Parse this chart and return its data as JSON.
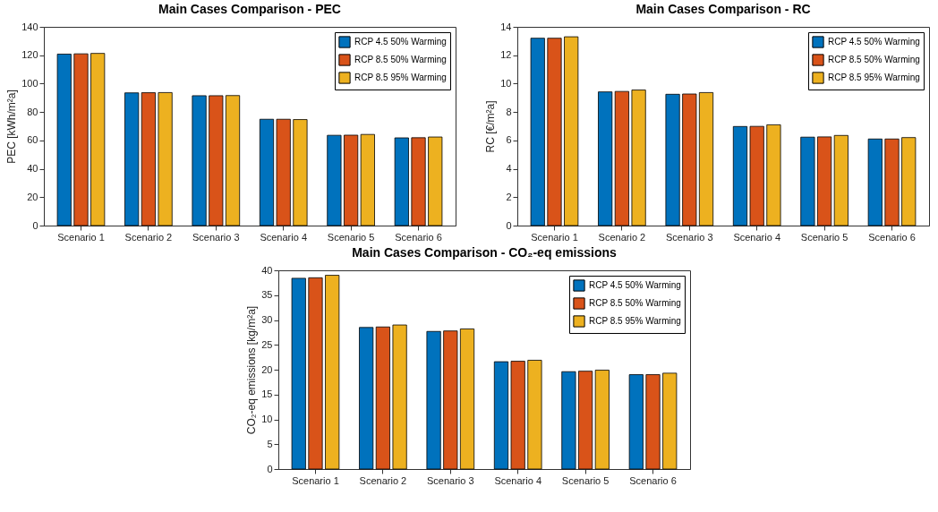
{
  "chart_data": [
    {
      "type": "bar",
      "title": "Main Cases Comparison - PEC",
      "ylabel": "PEC [kWh/m²a]",
      "categories": [
        "Scenario 1",
        "Scenario 2",
        "Scenario 3",
        "Scenario 4",
        "Scenario 5",
        "Scenario 6"
      ],
      "ylim": [
        0,
        140
      ],
      "yticks": [
        0,
        20,
        40,
        60,
        80,
        100,
        120,
        140
      ],
      "legend": "top right",
      "series": [
        {
          "name": "RCP 4.5 50% Warming",
          "color": "#0072bd",
          "values": [
            120.8,
            93.5,
            91.5,
            74.9,
            63.6,
            61.8
          ]
        },
        {
          "name": "RCP 8.5 50% Warming",
          "color": "#d95319",
          "values": [
            121,
            93.6,
            91.5,
            74.9,
            63.7,
            61.9
          ]
        },
        {
          "name": "RCP 8.5 95% Warming",
          "color": "#edb120",
          "values": [
            121.3,
            93.7,
            91.6,
            74.7,
            64.2,
            62.4
          ]
        }
      ]
    },
    {
      "type": "bar",
      "title": "Main Cases Comparison - RC",
      "ylabel": "RC [€/m²a]",
      "categories": [
        "Scenario 1",
        "Scenario 2",
        "Scenario 3",
        "Scenario 4",
        "Scenario 5",
        "Scenario 6"
      ],
      "ylim": [
        0,
        14
      ],
      "yticks": [
        0,
        2,
        4,
        6,
        8,
        10,
        12,
        14
      ],
      "legend": "top right",
      "series": [
        {
          "name": "RCP 4.5 50% Warming",
          "color": "#0072bd",
          "values": [
            13.2,
            9.42,
            9.25,
            6.98,
            6.23,
            6.1
          ]
        },
        {
          "name": "RCP 8.5 50% Warming",
          "color": "#d95319",
          "values": [
            13.2,
            9.45,
            9.27,
            6.99,
            6.25,
            6.1
          ]
        },
        {
          "name": "RCP 8.5 95% Warming",
          "color": "#edb120",
          "values": [
            13.3,
            9.55,
            9.37,
            7.1,
            6.35,
            6.2
          ]
        }
      ]
    },
    {
      "type": "bar",
      "title": "Main Cases Comparison - CO₂-eq emissions",
      "ylabel": "CO₂-eq emissions [kg/m²a]",
      "categories": [
        "Scenario 1",
        "Scenario 2",
        "Scenario 3",
        "Scenario 4",
        "Scenario 5",
        "Scenario 6"
      ],
      "ylim": [
        0,
        40
      ],
      "yticks": [
        0,
        5,
        10,
        15,
        20,
        25,
        30,
        35,
        40
      ],
      "legend": "top right",
      "series": [
        {
          "name": "RCP 4.5 50% Warming",
          "color": "#0072bd",
          "values": [
            38.4,
            28.5,
            27.7,
            21.6,
            19.6,
            19.0
          ]
        },
        {
          "name": "RCP 8.5 50% Warming",
          "color": "#d95319",
          "values": [
            38.5,
            28.6,
            27.8,
            21.7,
            19.7,
            19.0
          ]
        },
        {
          "name": "RCP 8.5 95% Warming",
          "color": "#edb120",
          "values": [
            39.0,
            29.0,
            28.2,
            21.9,
            19.9,
            19.3
          ]
        }
      ]
    }
  ]
}
